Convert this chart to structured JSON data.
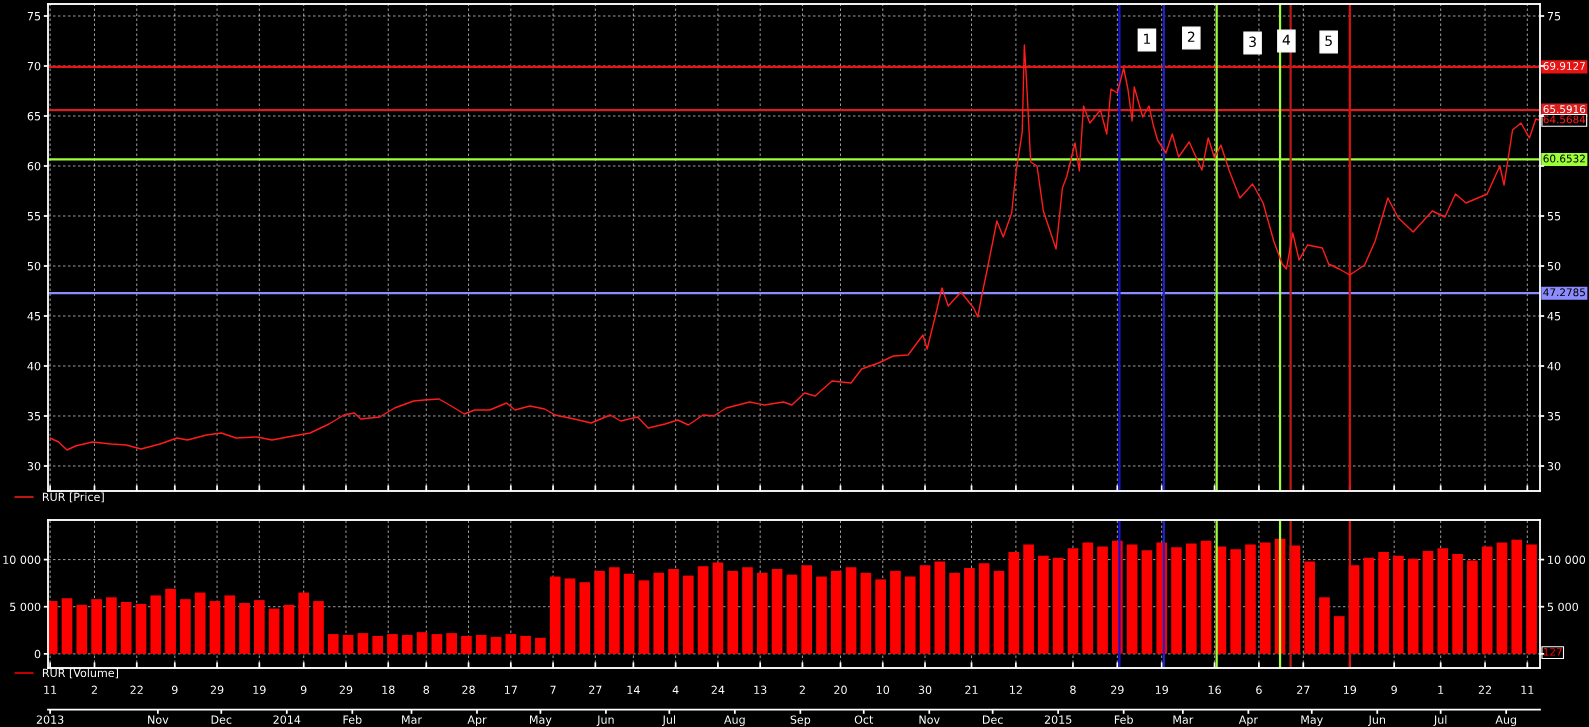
{
  "chart_data": [
    {
      "type": "line",
      "xlim": [
        "2013-09-10",
        "2015-08-17"
      ],
      "xticks": [
        {
          "value": "2013-09-11",
          "label": null
        },
        {
          "value": "2013-10-02",
          "label": null
        },
        {
          "value": "2013-10-22",
          "label": null
        },
        {
          "value": "2013-11-09",
          "label": null
        },
        {
          "value": "2013-11-29",
          "label": null
        },
        {
          "value": "2013-12-19",
          "label": null
        },
        {
          "value": "2014-01-09",
          "label": null
        },
        {
          "value": "2014-01-29",
          "label": null
        },
        {
          "value": "2014-02-18",
          "label": null
        },
        {
          "value": "2014-03-08",
          "label": null
        },
        {
          "value": "2014-03-28",
          "label": null
        },
        {
          "value": "2014-04-17",
          "label": null
        },
        {
          "value": "2014-05-07",
          "label": null
        },
        {
          "value": "2014-05-27",
          "label": null
        },
        {
          "value": "2014-06-14",
          "label": null
        },
        {
          "value": "2014-07-04",
          "label": null
        },
        {
          "value": "2014-07-24",
          "label": null
        },
        {
          "value": "2014-08-13",
          "label": null
        },
        {
          "value": "2014-09-02",
          "label": null
        },
        {
          "value": "2014-09-20",
          "label": null
        },
        {
          "value": "2014-10-10",
          "label": null
        },
        {
          "value": "2014-10-30",
          "label": null
        },
        {
          "value": "2014-11-21",
          "label": null
        },
        {
          "value": "2014-12-12",
          "label": null
        },
        {
          "value": "2015-01-08",
          "label": null
        },
        {
          "value": "2015-01-29",
          "label": null
        },
        {
          "value": "2015-02-19",
          "label": null
        },
        {
          "value": "2015-03-16",
          "label": null
        },
        {
          "value": "2015-04-06",
          "label": null
        },
        {
          "value": "2015-04-27",
          "label": null
        },
        {
          "value": "2015-05-19",
          "label": null
        },
        {
          "value": "2015-06-09",
          "label": null
        },
        {
          "value": "2015-07-01",
          "label": null
        },
        {
          "value": "2015-07-22",
          "label": null
        },
        {
          "value": "2015-08-11",
          "label": null
        }
      ],
      "ylim": [
        27.5,
        76.2
      ],
      "yticks": [
        30,
        35,
        40,
        45,
        50,
        55,
        60,
        65,
        70,
        75
      ],
      "y2lim": [
        27.5,
        76.2
      ],
      "y2ticks": [
        30,
        35,
        40,
        45,
        50,
        55,
        {
          "value": 60,
          "label": null
        },
        {
          "value": 65,
          "label": null
        },
        {
          "value": 70,
          "label": null
        },
        75
      ],
      "tick_labels": "y",
      "grid": true,
      "legend": "bottom left",
      "x": [
        "2013-09-11",
        "2013-09-15",
        "2013-09-19",
        "2013-09-23",
        "2013-10-01",
        "2013-10-10",
        "2013-10-17",
        "2013-10-24",
        "2013-11-02",
        "2013-11-10",
        "2013-11-15",
        "2013-11-24",
        "2013-12-01",
        "2013-12-08",
        "2013-12-18",
        "2013-12-25",
        "2014-01-04",
        "2014-01-12",
        "2014-01-21",
        "2014-01-28",
        "2014-02-02",
        "2014-02-05",
        "2014-02-14",
        "2014-02-21",
        "2014-03-02",
        "2014-03-07",
        "2014-03-14",
        "2014-03-19",
        "2014-03-26",
        "2014-03-31",
        "2014-04-07",
        "2014-04-15",
        "2014-04-19",
        "2014-04-26",
        "2014-05-03",
        "2014-05-08",
        "2014-05-17",
        "2014-05-25",
        "2014-06-03",
        "2014-06-08",
        "2014-06-16",
        "2014-06-21",
        "2014-06-29",
        "2014-07-05",
        "2014-07-10",
        "2014-07-17",
        "2014-07-22",
        "2014-07-28",
        "2014-08-08",
        "2014-08-15",
        "2014-08-24",
        "2014-08-28",
        "2014-09-03",
        "2014-09-08",
        "2014-09-16",
        "2014-09-25",
        "2014-09-30",
        "2014-10-08",
        "2014-10-15",
        "2014-10-22",
        "2014-10-29",
        "2014-10-31",
        "2014-11-04",
        "2014-11-07",
        "2014-11-10",
        "2014-11-16",
        "2014-11-22",
        "2014-11-24",
        "2014-11-26",
        "2014-11-28",
        "2014-12-03",
        "2014-12-06",
        "2014-12-10",
        "2014-12-12",
        "2014-12-15",
        "2014-12-16",
        "2014-12-17",
        "2014-12-19",
        "2014-12-22",
        "2014-12-25",
        "2014-12-31",
        "2015-01-03",
        "2015-01-05",
        "2015-01-09",
        "2015-01-11",
        "2015-01-13",
        "2015-01-16",
        "2015-01-21",
        "2015-01-24",
        "2015-01-26",
        "2015-01-29",
        "2015-02-01",
        "2015-02-03",
        "2015-02-05",
        "2015-02-06",
        "2015-02-10",
        "2015-02-13",
        "2015-02-15",
        "2015-02-17",
        "2015-02-21",
        "2015-02-24",
        "2015-02-27",
        "2015-03-04",
        "2015-03-10",
        "2015-03-13",
        "2015-03-16",
        "2015-03-19",
        "2015-03-23",
        "2015-03-28",
        "2015-04-03",
        "2015-04-08",
        "2015-04-13",
        "2015-04-17",
        "2015-04-19",
        "2015-04-22",
        "2015-04-25",
        "2015-04-29",
        "2015-05-06",
        "2015-05-09",
        "2015-05-14",
        "2015-05-19",
        "2015-05-26",
        "2015-05-31",
        "2015-06-06",
        "2015-06-11",
        "2015-06-18",
        "2015-06-27",
        "2015-07-03",
        "2015-07-08",
        "2015-07-13",
        "2015-07-23",
        "2015-07-29",
        "2015-07-31",
        "2015-08-04",
        "2015-08-08",
        "2015-08-12",
        "2015-08-15",
        "2015-08-17"
      ],
      "series": [
        {
          "name": "RUR [Price]",
          "color": "#ff1c1c",
          "values": [
            32.8,
            32.4,
            31.6,
            32.0,
            32.4,
            32.2,
            32.1,
            31.7,
            32.2,
            32.8,
            32.6,
            33.1,
            33.3,
            32.8,
            32.9,
            32.6,
            33.0,
            33.3,
            34.2,
            35.1,
            35.3,
            34.7,
            34.9,
            35.8,
            36.5,
            36.6,
            36.7,
            36.1,
            35.2,
            35.6,
            35.6,
            36.3,
            35.6,
            36.0,
            35.7,
            35.1,
            34.7,
            34.3,
            35.1,
            34.5,
            34.9,
            33.8,
            34.2,
            34.6,
            34.1,
            35.1,
            35.0,
            35.8,
            36.4,
            36.1,
            36.4,
            36.1,
            37.3,
            37.0,
            38.5,
            38.3,
            39.7,
            40.3,
            41.0,
            41.1,
            43.1,
            41.7,
            45.1,
            47.8,
            46.0,
            47.4,
            45.8,
            44.9,
            47.2,
            49.2,
            54.5,
            52.9,
            55.3,
            59.3,
            63.4,
            72.1,
            68.6,
            60.4,
            60.0,
            55.5,
            51.7,
            57.8,
            58.9,
            62.3,
            59.5,
            66.0,
            64.3,
            65.6,
            63.2,
            67.7,
            67.3,
            69.8,
            67.7,
            64.5,
            67.9,
            64.9,
            66.0,
            64.1,
            62.6,
            61.3,
            63.2,
            60.9,
            62.4,
            59.6,
            62.8,
            60.8,
            62.1,
            59.5,
            56.8,
            58.2,
            56.3,
            52.5,
            50.2,
            49.7,
            53.3,
            50.6,
            52.1,
            51.8,
            50.2,
            49.7,
            49.1,
            50.1,
            52.5,
            56.8,
            54.8,
            53.4,
            55.5,
            54.9,
            57.2,
            56.3,
            57.2,
            60.0,
            58.1,
            63.6,
            64.3,
            62.8,
            64.7,
            64.5684
          ]
        }
      ],
      "ref_lines": [
        {
          "axis": "y",
          "value": 69.9127,
          "label": "69.9127",
          "color": "#e81414"
        },
        {
          "axis": "y",
          "value": 65.5916,
          "label": "65.5916",
          "color": "#d42020"
        },
        {
          "axis": "y",
          "value": 60.6532,
          "label": "60.6532",
          "color": "#9cff38"
        },
        {
          "axis": "y",
          "value": 47.2785,
          "label": "47.2785",
          "color": "#8c8cff"
        },
        {
          "axis": "x",
          "value": "2015-01-30",
          "color": "#1414d2"
        },
        {
          "axis": "x",
          "value": "2015-02-20",
          "color": "#2222c8"
        },
        {
          "axis": "x",
          "value": "2015-03-17",
          "color": "#9cff38"
        },
        {
          "axis": "x",
          "value": "2015-04-16",
          "color": "#9cff38"
        },
        {
          "axis": "x",
          "value": "2015-04-21",
          "color": "#c01818"
        },
        {
          "axis": "x",
          "value": "2015-05-19",
          "color": "#e01010"
        }
      ],
      "annotations": [
        {
          "text": "1",
          "x": "2015-02-12",
          "y": 72.6
        },
        {
          "text": "2",
          "x": "2015-03-05",
          "y": 72.8
        },
        {
          "text": "3",
          "x": "2015-04-03",
          "y": 72.3
        },
        {
          "text": "4",
          "x": "2015-04-19",
          "y": 72.5
        },
        {
          "text": "5",
          "x": "2015-05-09",
          "y": 72.4
        },
        {
          "text": "64.5684",
          "x": "2015-08-17",
          "y": 64.5684
        }
      ]
    },
    {
      "type": "bar",
      "xlim": [
        "2013-09-10",
        "2015-08-17"
      ],
      "xticks": [
        {
          "value": "2013-09-11",
          "label": "11"
        },
        {
          "value": "2013-10-02",
          "label": "2"
        },
        {
          "value": "2013-10-22",
          "label": "22"
        },
        {
          "value": "2013-11-09",
          "label": "9"
        },
        {
          "value": "2013-11-29",
          "label": "29"
        },
        {
          "value": "2013-12-19",
          "label": "19"
        },
        {
          "value": "2014-01-09",
          "label": "9"
        },
        {
          "value": "2014-01-29",
          "label": "29"
        },
        {
          "value": "2014-02-18",
          "label": "18"
        },
        {
          "value": "2014-03-08",
          "label": "8"
        },
        {
          "value": "2014-03-28",
          "label": "28"
        },
        {
          "value": "2014-04-17",
          "label": "17"
        },
        {
          "value": "2014-05-07",
          "label": "7"
        },
        {
          "value": "2014-05-27",
          "label": "27"
        },
        {
          "value": "2014-06-14",
          "label": "14"
        },
        {
          "value": "2014-07-04",
          "label": "4"
        },
        {
          "value": "2014-07-24",
          "label": "24"
        },
        {
          "value": "2014-08-13",
          "label": "13"
        },
        {
          "value": "2014-09-02",
          "label": "2"
        },
        {
          "value": "2014-09-20",
          "label": "20"
        },
        {
          "value": "2014-10-10",
          "label": "10"
        },
        {
          "value": "2014-10-30",
          "label": "30"
        },
        {
          "value": "2014-11-21",
          "label": "21"
        },
        {
          "value": "2014-12-12",
          "label": "12"
        },
        {
          "value": "2015-01-08",
          "label": "8"
        },
        {
          "value": "2015-01-29",
          "label": "29"
        },
        {
          "value": "2015-02-19",
          "label": "19"
        },
        {
          "value": "2015-03-16",
          "label": "16"
        },
        {
          "value": "2015-04-06",
          "label": "6"
        },
        {
          "value": "2015-04-27",
          "label": "27"
        },
        {
          "value": "2015-05-19",
          "label": "19"
        },
        {
          "value": "2015-06-09",
          "label": "9"
        },
        {
          "value": "2015-07-01",
          "label": "1"
        },
        {
          "value": "2015-07-22",
          "label": "22"
        },
        {
          "value": "2015-08-11",
          "label": "11"
        }
      ],
      "x2lim": [
        "2013-09-10",
        "2015-08-17"
      ],
      "x2ticks": [
        {
          "value": "2013-09-11",
          "label": "2013"
        },
        {
          "value": "2013-11-01",
          "label": "Nov"
        },
        {
          "value": "2013-12-01",
          "label": "Dec"
        },
        {
          "value": "2014-01-01",
          "label": "2014"
        },
        {
          "value": "2014-02-01",
          "label": "Feb"
        },
        {
          "value": "2014-03-01",
          "label": "Mar"
        },
        {
          "value": "2014-04-01",
          "label": "Apr"
        },
        {
          "value": "2014-05-01",
          "label": "May"
        },
        {
          "value": "2014-06-01",
          "label": "Jun"
        },
        {
          "value": "2014-07-01",
          "label": "Jul"
        },
        {
          "value": "2014-08-01",
          "label": "Aug"
        },
        {
          "value": "2014-09-01",
          "label": "Sep"
        },
        {
          "value": "2014-10-01",
          "label": "Oct"
        },
        {
          "value": "2014-11-01",
          "label": "Nov"
        },
        {
          "value": "2014-12-01",
          "label": "Dec"
        },
        {
          "value": "2015-01-01",
          "label": "2015"
        },
        {
          "value": "2015-02-01",
          "label": "Feb"
        },
        {
          "value": "2015-03-01",
          "label": "Mar"
        },
        {
          "value": "2015-04-01",
          "label": "Apr"
        },
        {
          "value": "2015-05-01",
          "label": "May"
        },
        {
          "value": "2015-06-01",
          "label": "Jun"
        },
        {
          "value": "2015-07-01",
          "label": "Jul"
        },
        {
          "value": "2015-08-01",
          "label": "Aug"
        }
      ],
      "ylim": [
        -1500,
        14200
      ],
      "yticks": [
        0,
        {
          "value": 5000,
          "label": "5 000"
        },
        {
          "value": 10000,
          "label": "10 000"
        }
      ],
      "y2lim": [
        -1500,
        14200
      ],
      "y2ticks": [
        {
          "value": 0,
          "label": null
        },
        {
          "value": 5000,
          "label": "5 000"
        },
        {
          "value": 10000,
          "label": "10 000"
        }
      ],
      "grid": true,
      "legend": "bottom left",
      "x": [
        "2013-09-12",
        "2013-09-19",
        "2013-09-26",
        "2013-10-03",
        "2013-10-10",
        "2013-10-17",
        "2013-10-24",
        "2013-10-31",
        "2013-11-07",
        "2013-11-14",
        "2013-11-21",
        "2013-11-28",
        "2013-12-05",
        "2013-12-12",
        "2013-12-19",
        "2013-12-26",
        "2014-01-02",
        "2014-01-09",
        "2014-01-16",
        "2014-01-23",
        "2014-01-30",
        "2014-02-06",
        "2014-02-13",
        "2014-02-20",
        "2014-02-27",
        "2014-03-06",
        "2014-03-13",
        "2014-03-20",
        "2014-03-27",
        "2014-04-03",
        "2014-04-10",
        "2014-04-17",
        "2014-04-24",
        "2014-05-01",
        "2014-05-08",
        "2014-05-15",
        "2014-05-22",
        "2014-05-29",
        "2014-06-05",
        "2014-06-12",
        "2014-06-19",
        "2014-06-26",
        "2014-07-03",
        "2014-07-10",
        "2014-07-17",
        "2014-07-24",
        "2014-07-31",
        "2014-08-07",
        "2014-08-14",
        "2014-08-21",
        "2014-08-28",
        "2014-09-04",
        "2014-09-11",
        "2014-09-18",
        "2014-09-25",
        "2014-10-02",
        "2014-10-09",
        "2014-10-16",
        "2014-10-23",
        "2014-10-30",
        "2014-11-06",
        "2014-11-13",
        "2014-11-20",
        "2014-11-27",
        "2014-12-04",
        "2014-12-11",
        "2014-12-18",
        "2014-12-25",
        "2015-01-01",
        "2015-01-08",
        "2015-01-15",
        "2015-01-22",
        "2015-01-29",
        "2015-02-05",
        "2015-02-12",
        "2015-02-19",
        "2015-02-26",
        "2015-03-05",
        "2015-03-12",
        "2015-03-19",
        "2015-03-26",
        "2015-04-02",
        "2015-04-09",
        "2015-04-16",
        "2015-04-23",
        "2015-04-30",
        "2015-05-07",
        "2015-05-14",
        "2015-05-21",
        "2015-05-28",
        "2015-06-04",
        "2015-06-11",
        "2015-06-18",
        "2015-06-25",
        "2015-07-02",
        "2015-07-09",
        "2015-07-16",
        "2015-07-23",
        "2015-07-30",
        "2015-08-06",
        "2015-08-13"
      ],
      "series": [
        {
          "name": "RUR [Volume]",
          "color": "#ff0000",
          "values": [
            5600,
            5900,
            5200,
            5800,
            6000,
            5500,
            5300,
            6200,
            6900,
            5800,
            6500,
            5600,
            6200,
            5400,
            5700,
            4800,
            5200,
            6500,
            5600,
            2100,
            2000,
            2200,
            1900,
            2100,
            2000,
            2300,
            2100,
            2200,
            1900,
            2000,
            1800,
            2100,
            1900,
            1700,
            8200,
            8000,
            7600,
            8800,
            9200,
            8500,
            7800,
            8600,
            9000,
            8300,
            9300,
            9700,
            8800,
            9200,
            8600,
            9000,
            8400,
            9400,
            8200,
            8800,
            9200,
            8600,
            7900,
            8800,
            8200,
            9400,
            9800,
            8600,
            9100,
            9600,
            8800,
            10800,
            11600,
            10400,
            10200,
            11200,
            11800,
            11400,
            12000,
            11600,
            11000,
            11800,
            11300,
            11700,
            12000,
            11400,
            11100,
            11600,
            11800,
            12200,
            11500,
            9800,
            6000,
            4000,
            9400,
            10200,
            10800,
            10400,
            10100,
            10900,
            11200,
            10600,
            9900,
            11400,
            11800,
            12100,
            11600
          ]
        }
      ],
      "ref_lines": [
        {
          "axis": "x",
          "value": "2015-01-30",
          "color": "#1414d2"
        },
        {
          "axis": "x",
          "value": "2015-02-20",
          "color": "#2222c8"
        },
        {
          "axis": "x",
          "value": "2015-03-17",
          "color": "#9cff38"
        },
        {
          "axis": "x",
          "value": "2015-04-16",
          "color": "#9cff38"
        },
        {
          "axis": "x",
          "value": "2015-04-21",
          "color": "#c01818"
        },
        {
          "axis": "x",
          "value": "2015-05-19",
          "color": "#e01010"
        }
      ],
      "annotations": [
        {
          "text": "127",
          "x": "2015-08-17",
          "y": 127
        }
      ]
    }
  ]
}
